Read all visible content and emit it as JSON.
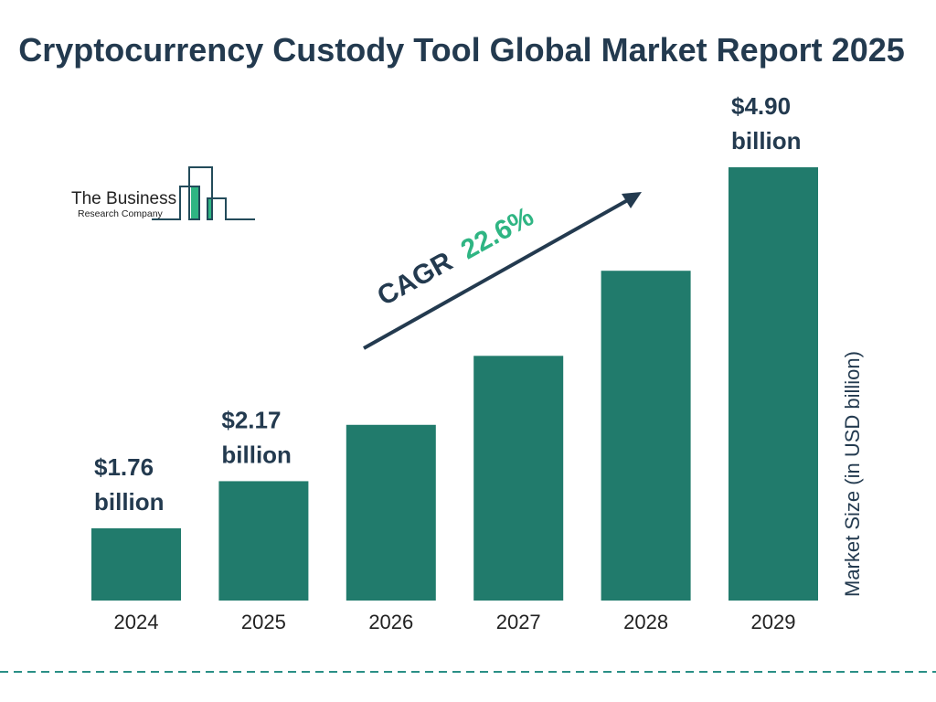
{
  "chart_data": {
    "type": "bar",
    "title": "Cryptocurrency Custody Tool Global Market Report 2025",
    "categories": [
      "2024",
      "2025",
      "2026",
      "2027",
      "2028",
      "2029"
    ],
    "values": [
      1.76,
      2.17,
      2.66,
      3.26,
      4.0,
      4.9
    ],
    "data_labels": [
      [
        "$1.76",
        "billion"
      ],
      [
        "$2.17",
        "billion"
      ],
      null,
      null,
      null,
      [
        "$4.90",
        "billion"
      ]
    ],
    "xlabel": "",
    "ylabel": "Market Size (in USD billion)",
    "grid": false,
    "annotation": {
      "prefix": "CAGR",
      "value": "22.6%"
    },
    "colors": {
      "bar": "#217b6c",
      "text": "#233a4f",
      "cagr": "#2fb583",
      "dash": "#2a8f86"
    }
  },
  "logo": {
    "line1": "The Business",
    "line2": "Research Company"
  }
}
